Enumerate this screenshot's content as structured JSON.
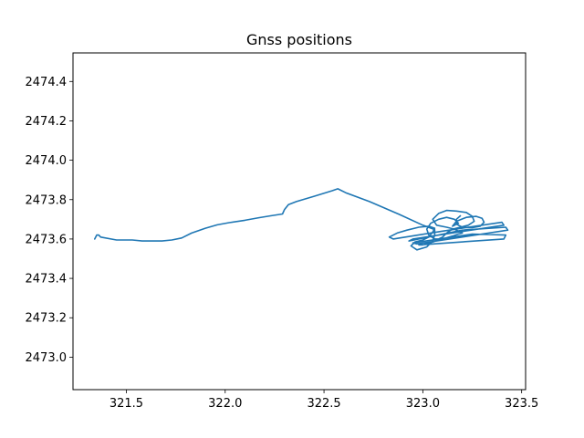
{
  "chart_data": {
    "type": "line",
    "title": "Gnss positions",
    "xlabel": "",
    "ylabel": "",
    "xlim": [
      321.23,
      323.52
    ],
    "ylim": [
      2472.835,
      2474.545
    ],
    "xticks": [
      321.5,
      322.0,
      322.5,
      323.0,
      323.5
    ],
    "yticks": [
      2473.0,
      2473.2,
      2473.4,
      2473.6,
      2473.8,
      2474.0,
      2474.2,
      2474.4
    ],
    "xtick_labels": [
      "321.5",
      "322.0",
      "322.5",
      "323.0",
      "323.5"
    ],
    "ytick_labels": [
      "2473.0",
      "2473.2",
      "2473.4",
      "2473.6",
      "2473.8",
      "2474.0",
      "2474.2",
      "2474.4"
    ],
    "grid": false,
    "legend": "none",
    "series": [
      {
        "color": "#1f77b4",
        "x": [
          321.34,
          321.35,
          321.36,
          321.37,
          321.45,
          321.53,
          321.58,
          321.63,
          321.68,
          321.73,
          321.78,
          321.83,
          321.9,
          321.96,
          322.02,
          322.1,
          322.17,
          322.23,
          322.29,
          322.3,
          322.32,
          322.36,
          322.45,
          322.54,
          322.57,
          322.61,
          322.73,
          322.88,
          323.0,
          323.06,
          323.06,
          323.05,
          323.02,
          322.97,
          322.94,
          322.96,
          323.0,
          323.03,
          323.05,
          323.06,
          323.03,
          322.98,
          322.92,
          322.87,
          322.83,
          322.85,
          323.1,
          323.4,
          323.41,
          322.95,
          322.93,
          323.2,
          323.42,
          323.43,
          322.97,
          322.95,
          323.25,
          323.42,
          323.41,
          322.98,
          323.0,
          323.05,
          323.1,
          323.15,
          323.18,
          323.2,
          323.16,
          323.12,
          323.07,
          323.05,
          323.08,
          323.12,
          323.17,
          323.22,
          323.25,
          323.26,
          323.23,
          323.19,
          323.15,
          323.12,
          323.1,
          323.08,
          323.06,
          323.03,
          323.02,
          323.04,
          323.08,
          323.12,
          323.16,
          323.18,
          323.15,
          323.17,
          323.22,
          323.27,
          323.3,
          323.31,
          323.29,
          323.25,
          323.2,
          323.17,
          323.17,
          323.19
        ],
        "y": [
          2473.6,
          2473.62,
          2473.62,
          2473.61,
          2473.595,
          2473.595,
          2473.59,
          2473.59,
          2473.59,
          2473.595,
          2473.605,
          2473.63,
          2473.655,
          2473.672,
          2473.683,
          2473.695,
          2473.708,
          2473.718,
          2473.727,
          2473.75,
          2473.775,
          2473.79,
          2473.817,
          2473.845,
          2473.855,
          2473.835,
          2473.79,
          2473.725,
          2473.67,
          2473.648,
          2473.62,
          2473.59,
          2473.56,
          2473.545,
          2473.565,
          2473.585,
          2473.595,
          2473.61,
          2473.635,
          2473.655,
          2473.665,
          2473.66,
          2473.645,
          2473.63,
          2473.61,
          2473.6,
          2473.64,
          2473.685,
          2473.67,
          2473.6,
          2473.59,
          2473.645,
          2473.66,
          2473.645,
          2473.575,
          2473.58,
          2473.625,
          2473.62,
          2473.6,
          2473.57,
          2473.57,
          2473.585,
          2473.6,
          2473.615,
          2473.625,
          2473.63,
          2473.65,
          2473.66,
          2473.67,
          2473.7,
          2473.73,
          2473.745,
          2473.742,
          2473.735,
          2473.715,
          2473.69,
          2473.67,
          2473.66,
          2473.65,
          2473.63,
          2473.61,
          2473.6,
          2473.6,
          2473.62,
          2473.65,
          2473.68,
          2473.7,
          2473.71,
          2473.7,
          2473.68,
          2473.665,
          2473.69,
          2473.71,
          2473.715,
          2473.705,
          2473.685,
          2473.665,
          2473.658,
          2473.66,
          2473.675,
          2473.7,
          2473.718
        ]
      }
    ]
  }
}
